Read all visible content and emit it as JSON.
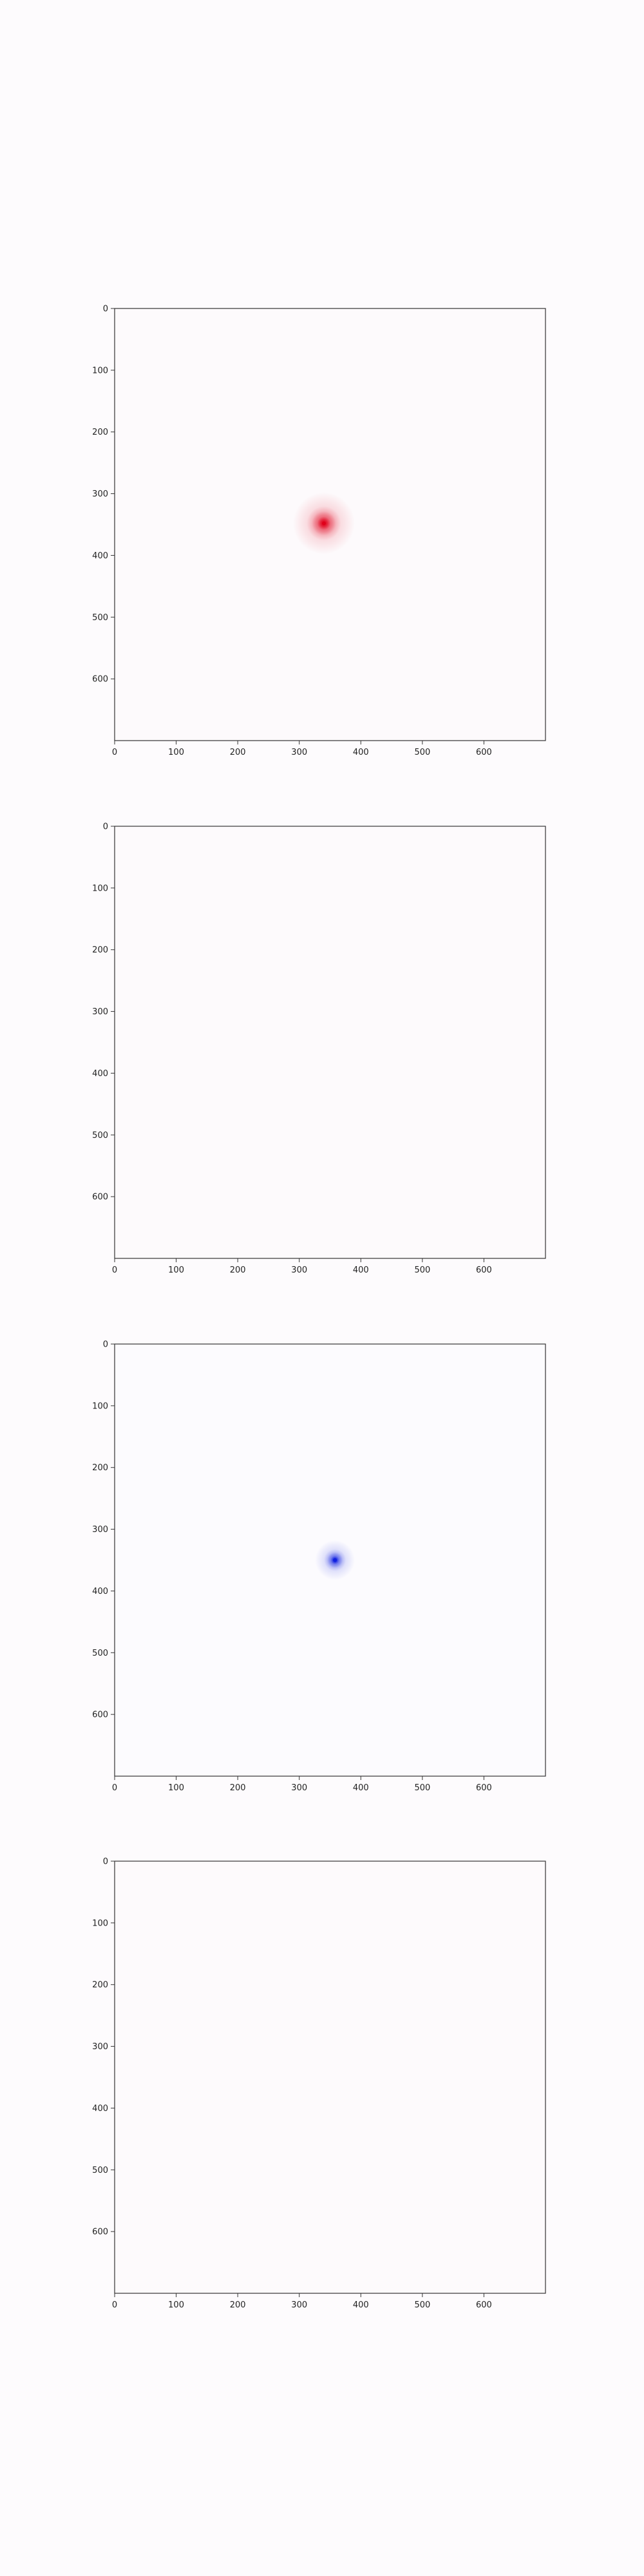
{
  "chart_data": [
    {
      "type": "heatmap",
      "title": "",
      "xlabel": "",
      "ylabel": "",
      "xlim": [
        0,
        700
      ],
      "ylim": [
        700,
        0
      ],
      "x_ticks": [
        "0",
        "100",
        "200",
        "300",
        "400",
        "500",
        "600"
      ],
      "y_ticks": [
        "0",
        "100",
        "200",
        "300",
        "400",
        "500",
        "600"
      ],
      "background_color": "#fdfafc",
      "grid": false,
      "hotspot": {
        "x": 340,
        "y": 348,
        "color": "#e0001a",
        "spread": 28
      }
    },
    {
      "type": "heatmap",
      "title": "",
      "xlabel": "",
      "ylabel": "",
      "xlim": [
        0,
        700
      ],
      "ylim": [
        700,
        0
      ],
      "x_ticks": [
        "0",
        "100",
        "200",
        "300",
        "400",
        "500",
        "600"
      ],
      "y_ticks": [
        "0",
        "100",
        "200",
        "300",
        "400",
        "500",
        "600"
      ],
      "background_color": "#fdfafc",
      "grid": false,
      "hotspot": null
    },
    {
      "type": "heatmap",
      "title": "",
      "xlabel": "",
      "ylabel": "",
      "xlim": [
        0,
        700
      ],
      "ylim": [
        700,
        0
      ],
      "x_ticks": [
        "0",
        "100",
        "200",
        "300",
        "400",
        "500",
        "600"
      ],
      "y_ticks": [
        "0",
        "100",
        "200",
        "300",
        "400",
        "500",
        "600"
      ],
      "background_color": "#fcfbfe",
      "grid": false,
      "hotspot": {
        "x": 358,
        "y": 350,
        "color": "#1020e0",
        "spread": 18
      }
    },
    {
      "type": "heatmap",
      "title": "",
      "xlabel": "",
      "ylabel": "",
      "xlim": [
        0,
        700
      ],
      "ylim": [
        700,
        0
      ],
      "x_ticks": [
        "0",
        "100",
        "200",
        "300",
        "400",
        "500",
        "600"
      ],
      "y_ticks": [
        "0",
        "100",
        "200",
        "300",
        "400",
        "500",
        "600"
      ],
      "background_color": "#fdfafc",
      "grid": false,
      "hotspot": null
    }
  ]
}
